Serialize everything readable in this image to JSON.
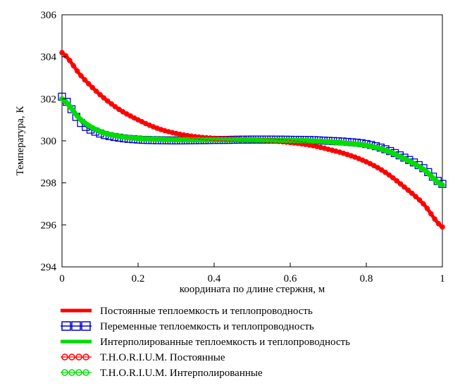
{
  "chart_data": {
    "type": "line",
    "xlabel": "координата по длине стержня, м",
    "ylabel": "Температура, К",
    "xlim": [
      0,
      1
    ],
    "ylim": [
      294,
      306
    ],
    "x_ticks": [
      "0",
      "0.2",
      "0.4",
      "0.6",
      "0.8",
      "1"
    ],
    "y_ticks": [
      "294",
      "296",
      "298",
      "300",
      "302",
      "304",
      "306"
    ],
    "grid": false,
    "legend_position": "bottom",
    "x": [
      0,
      0.05,
      0.1,
      0.15,
      0.2,
      0.25,
      0.3,
      0.35,
      0.4,
      0.45,
      0.5,
      0.55,
      0.6,
      0.65,
      0.7,
      0.75,
      0.8,
      0.85,
      0.9,
      0.95,
      1.0
    ],
    "series": [
      {
        "name": "Постоянные теплоемкость и теплопроводность",
        "color": "#ff0000",
        "style": "line",
        "values": [
          304.2,
          303.1,
          302.2,
          301.5,
          301.0,
          300.6,
          300.35,
          300.2,
          300.12,
          300.08,
          300.05,
          300.0,
          299.92,
          299.8,
          299.6,
          299.35,
          299.0,
          298.5,
          297.8,
          297.0,
          295.9
        ]
      },
      {
        "name": "Переменные теплоемкость и теплопроводность",
        "color": "#0000cc",
        "style": "square-markers",
        "values": [
          302.1,
          300.85,
          300.35,
          300.15,
          300.06,
          300.03,
          300.02,
          300.03,
          300.04,
          300.05,
          300.06,
          300.06,
          300.05,
          300.04,
          300.0,
          299.95,
          299.85,
          299.6,
          299.2,
          298.7,
          297.95
        ]
      },
      {
        "name": "Интерполированные теплоемкость и теплопроводность",
        "color": "#00dd00",
        "style": "line",
        "values": [
          302.0,
          301.0,
          300.45,
          300.22,
          300.12,
          300.08,
          300.06,
          300.05,
          300.05,
          300.05,
          300.04,
          300.03,
          300.02,
          300.0,
          299.95,
          299.88,
          299.78,
          299.55,
          299.15,
          298.65,
          297.9
        ]
      },
      {
        "name": "T.H.O.R.I.U.M. Постоянные",
        "color": "#ff0000",
        "style": "circle-markers",
        "values": [
          304.2,
          303.1,
          302.2,
          301.5,
          301.0,
          300.6,
          300.35,
          300.2,
          300.12,
          300.08,
          300.05,
          300.0,
          299.92,
          299.8,
          299.6,
          299.35,
          299.0,
          298.5,
          297.8,
          297.0,
          295.9
        ]
      },
      {
        "name": "T.H.O.R.I.U.M. Интерполированные",
        "color": "#00dd00",
        "style": "circle-markers",
        "values": [
          302.0,
          301.0,
          300.45,
          300.22,
          300.12,
          300.08,
          300.06,
          300.05,
          300.05,
          300.05,
          300.04,
          300.03,
          300.02,
          300.0,
          299.95,
          299.88,
          299.78,
          299.55,
          299.15,
          298.65,
          297.9
        ]
      }
    ]
  }
}
